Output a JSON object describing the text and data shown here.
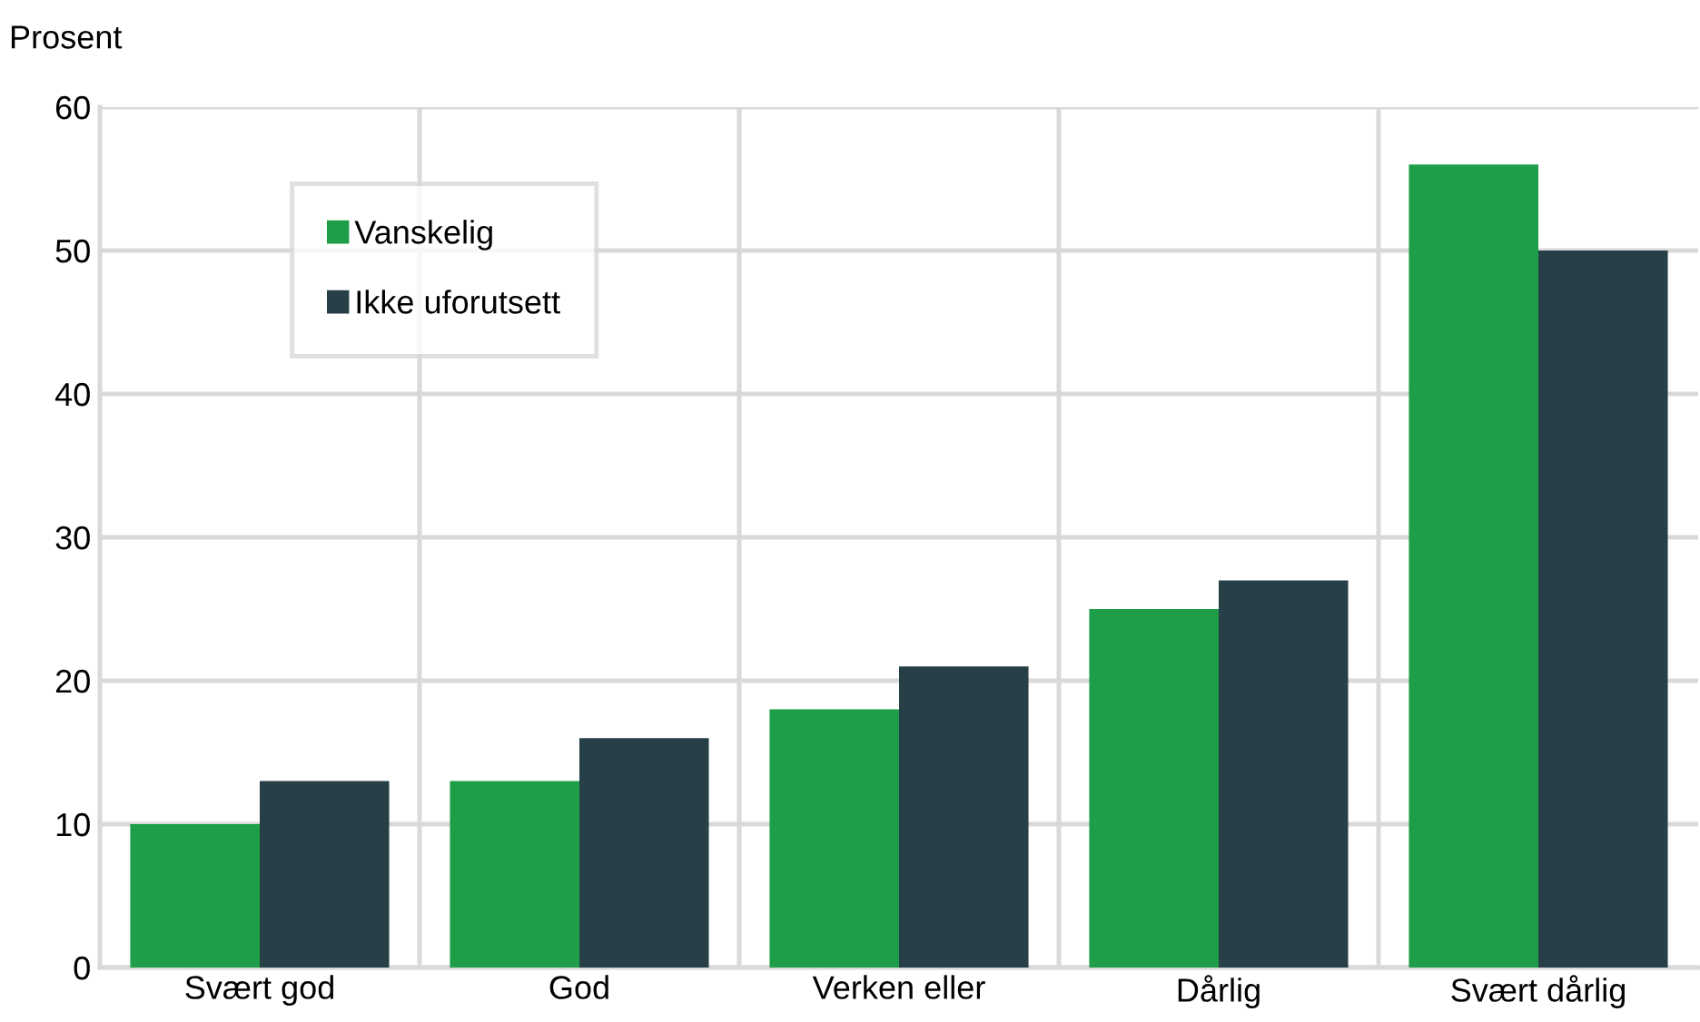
{
  "chart_data": {
    "type": "bar",
    "ylabel": "Prosent",
    "categories": [
      "Svært god",
      "God",
      "Verken eller",
      "Dårlig",
      "Svært dårlig"
    ],
    "series": [
      {
        "name": "Vanskelig",
        "color": "#1e9e48",
        "values": [
          10,
          13,
          18,
          25,
          56
        ]
      },
      {
        "name": "Ikke uforutsett",
        "color": "#274047",
        "values": [
          13,
          16,
          21,
          27,
          50
        ]
      }
    ],
    "ylim": [
      0,
      60
    ],
    "yticks": [
      0,
      10,
      20,
      30,
      40,
      50,
      60
    ],
    "grid": true,
    "legend": "top left"
  }
}
